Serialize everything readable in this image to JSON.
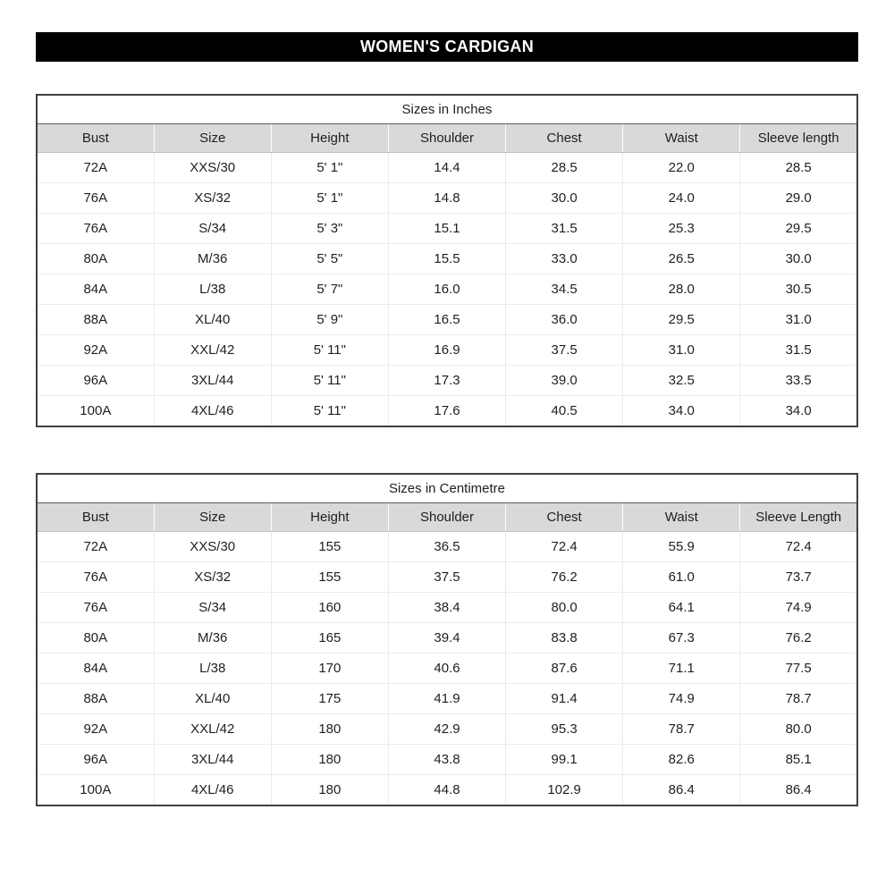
{
  "banner": {
    "title": "WOMEN'S CARDIGAN",
    "bg_color": "#000000",
    "text_color": "#ffffff"
  },
  "colors": {
    "header_bg": "#d9d9d9",
    "outer_border": "#404040",
    "gridline": "#ebebeb"
  },
  "tables": [
    {
      "id": "inches",
      "title": "Sizes in Inches",
      "headers": [
        "Bust",
        "Size",
        "Height",
        "Shoulder",
        "Chest",
        "Waist",
        "Sleeve length"
      ],
      "rows": [
        [
          "72A",
          "XXS/30",
          "5' 1\"",
          "14.4",
          "28.5",
          "22.0",
          "28.5"
        ],
        [
          "76A",
          "XS/32",
          "5' 1\"",
          "14.8",
          "30.0",
          "24.0",
          "29.0"
        ],
        [
          "76A",
          "S/34",
          "5' 3\"",
          "15.1",
          "31.5",
          "25.3",
          "29.5"
        ],
        [
          "80A",
          "M/36",
          "5' 5\"",
          "15.5",
          "33.0",
          "26.5",
          "30.0"
        ],
        [
          "84A",
          "L/38",
          "5' 7\"",
          "16.0",
          "34.5",
          "28.0",
          "30.5"
        ],
        [
          "88A",
          "XL/40",
          "5' 9\"",
          "16.5",
          "36.0",
          "29.5",
          "31.0"
        ],
        [
          "92A",
          "XXL/42",
          "5' 11\"",
          "16.9",
          "37.5",
          "31.0",
          "31.5"
        ],
        [
          "96A",
          "3XL/44",
          "5' 11\"",
          "17.3",
          "39.0",
          "32.5",
          "33.5"
        ],
        [
          "100A",
          "4XL/46",
          "5' 11\"",
          "17.6",
          "40.5",
          "34.0",
          "34.0"
        ]
      ]
    },
    {
      "id": "centimetre",
      "title": "Sizes in Centimetre",
      "headers": [
        "Bust",
        "Size",
        "Height",
        "Shoulder",
        "Chest",
        "Waist",
        "Sleeve Length"
      ],
      "rows": [
        [
          "72A",
          "XXS/30",
          "155",
          "36.5",
          "72.4",
          "55.9",
          "72.4"
        ],
        [
          "76A",
          "XS/32",
          "155",
          "37.5",
          "76.2",
          "61.0",
          "73.7"
        ],
        [
          "76A",
          "S/34",
          "160",
          "38.4",
          "80.0",
          "64.1",
          "74.9"
        ],
        [
          "80A",
          "M/36",
          "165",
          "39.4",
          "83.8",
          "67.3",
          "76.2"
        ],
        [
          "84A",
          "L/38",
          "170",
          "40.6",
          "87.6",
          "71.1",
          "77.5"
        ],
        [
          "88A",
          "XL/40",
          "175",
          "41.9",
          "91.4",
          "74.9",
          "78.7"
        ],
        [
          "92A",
          "XXL/42",
          "180",
          "42.9",
          "95.3",
          "78.7",
          "80.0"
        ],
        [
          "96A",
          "3XL/44",
          "180",
          "43.8",
          "99.1",
          "82.6",
          "85.1"
        ],
        [
          "100A",
          "4XL/46",
          "180",
          "44.8",
          "102.9",
          "86.4",
          "86.4"
        ]
      ]
    }
  ]
}
